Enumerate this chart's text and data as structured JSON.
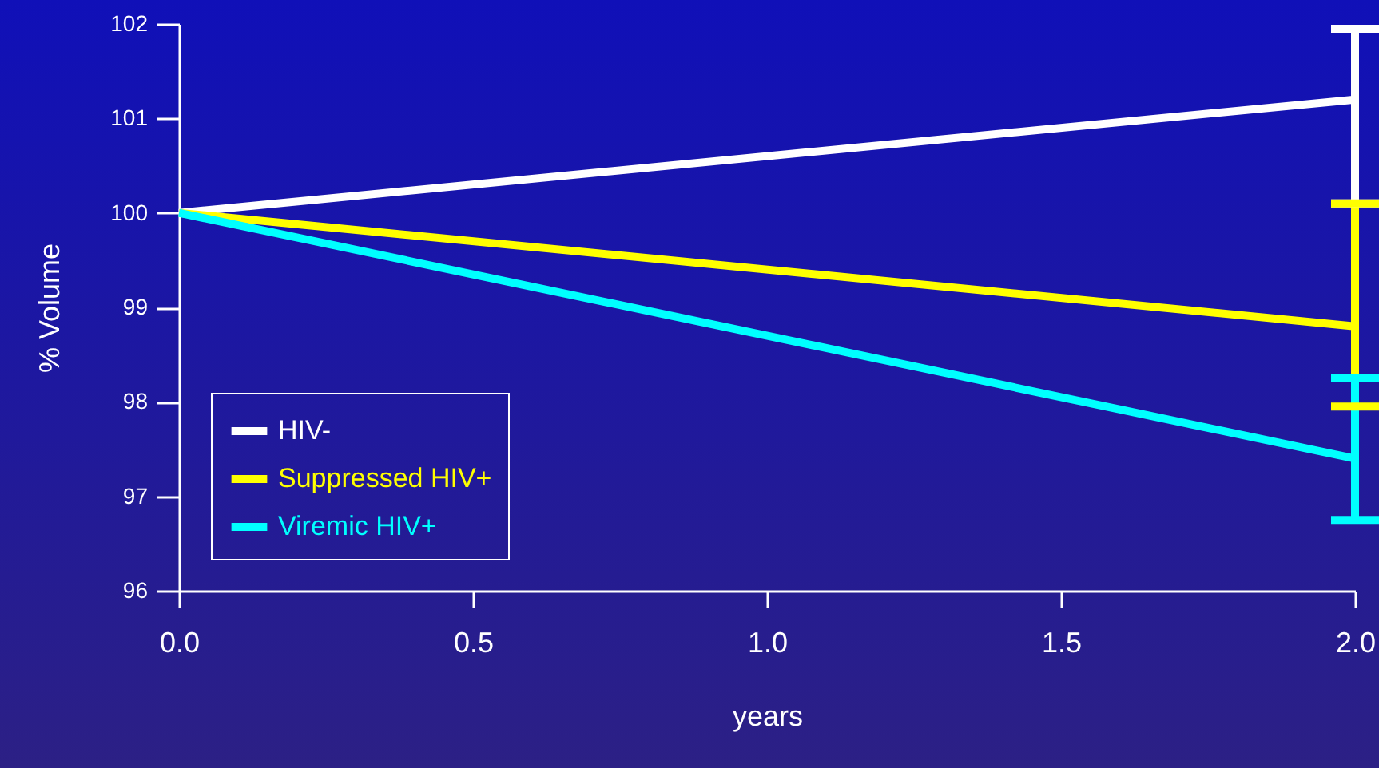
{
  "chart_data": {
    "type": "line",
    "xlabel": "years",
    "ylabel": "% Volume",
    "x": [
      0,
      2
    ],
    "series": [
      {
        "name": "HIV-",
        "color": "#ffffff",
        "values": [
          100,
          101.2
        ],
        "errors": [
          null,
          [
            100.1,
            101.95
          ]
        ]
      },
      {
        "name": "Suppressed HIV+",
        "color": "#ffff00",
        "values": [
          100,
          98.8
        ],
        "errors": [
          null,
          [
            97.95,
            100.1
          ]
        ]
      },
      {
        "name": "Viremic HIV+",
        "color": "#00ffff",
        "values": [
          100,
          97.4
        ],
        "errors": [
          null,
          [
            96.75,
            98.25
          ]
        ]
      }
    ],
    "xlim": [
      0,
      2
    ],
    "xticks": [
      {
        "value": 0,
        "label": "0.0"
      },
      {
        "value": 0.5,
        "label": "0.5"
      },
      {
        "value": 1,
        "label": "1.0"
      },
      {
        "value": 1.5,
        "label": "1.5"
      },
      {
        "value": 2,
        "label": "2.0"
      }
    ],
    "ylim": [
      96,
      102
    ],
    "yticks": [
      96,
      97,
      98,
      99,
      100,
      101,
      102
    ],
    "legend": "bottom left",
    "grid": false,
    "marker": "none",
    "line_style": "solid"
  }
}
